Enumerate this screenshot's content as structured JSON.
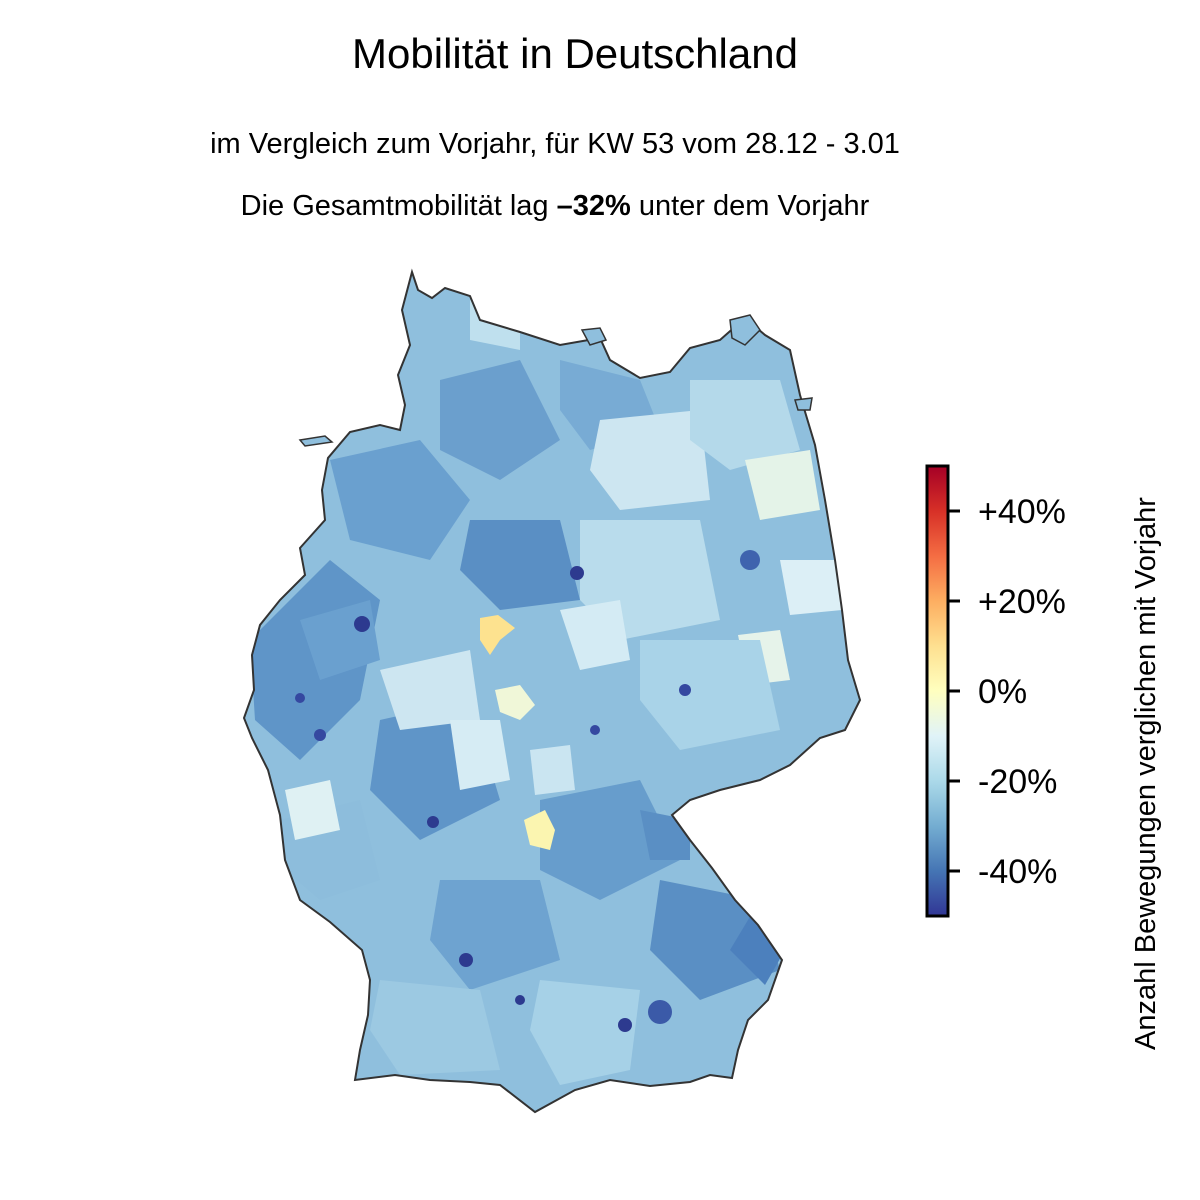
{
  "header": {
    "title": "Mobilität in Deutschland",
    "subtitle": "im Vergleich zum Vorjahr, für KW 53 vom 28.12 - 3.01",
    "summary_prefix": "Die Gesamtmobilität lag",
    "summary_value": "–32%",
    "summary_suffix": "unter dem Vorjahr"
  },
  "colorbar": {
    "label": "Anzahl Bewegungen verglichen mit Vorjahr",
    "range": [
      -50,
      50
    ],
    "ticks": [
      {
        "value": 40,
        "label": "+40%"
      },
      {
        "value": 20,
        "label": "+20%"
      },
      {
        "value": 0,
        "label": "0%"
      },
      {
        "value": -20,
        "label": "-20%"
      },
      {
        "value": -40,
        "label": "-40%"
      }
    ],
    "colors": [
      "#313695",
      "#4575b4",
      "#74add1",
      "#abd9e9",
      "#e0f3f8",
      "#ffffbf",
      "#fee090",
      "#fdae61",
      "#f46d43",
      "#d73027",
      "#a50026"
    ]
  },
  "map": {
    "country": "Deutschland",
    "outline_color": "#333333",
    "base_color": "#8fbfdd"
  }
}
